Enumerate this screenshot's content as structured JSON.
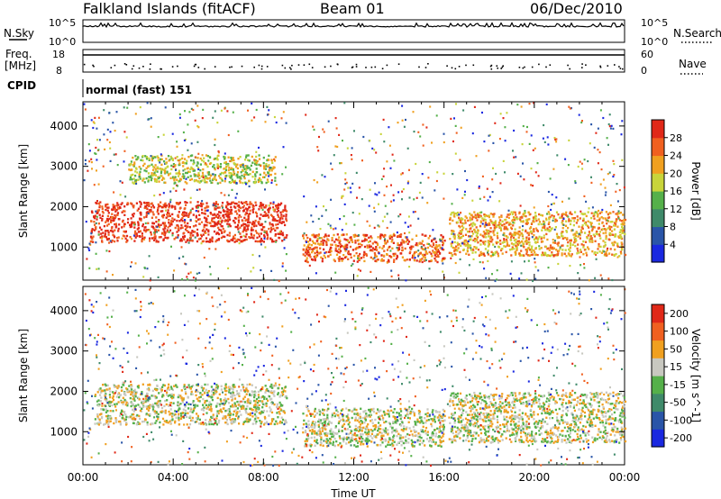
{
  "header": {
    "station": "Falkland Islands (fitACF)",
    "beam": "Beam 01",
    "date": "06/Dec/2010"
  },
  "noise_panel": {
    "left_label": "N.Sky",
    "right_label": "N.Search",
    "ticks_left": [
      "10^5",
      "10^0"
    ],
    "ticks_right": [
      "10^5",
      "10^0"
    ]
  },
  "freq_panel": {
    "left_label_line1": "Freq.",
    "left_label_line2": "[MHz]",
    "right_label": "Nave",
    "ticks_left": [
      "18",
      "8"
    ],
    "ticks_right": [
      "60",
      "0"
    ]
  },
  "cpid_panel": {
    "label": "CPID",
    "mode_text": "normal (fast) 151"
  },
  "chart_data": [
    {
      "type": "heatmap",
      "title": "",
      "xlabel": "",
      "ylabel": "Slant Range [km]",
      "ylim": [
        180,
        4600
      ],
      "yticks": [
        1000,
        2000,
        3000,
        4000
      ],
      "xlim_hours": [
        0,
        24
      ],
      "data_gaps_ut": [
        [
          "09:00",
          "09:45"
        ],
        [
          "16:00",
          "16:15"
        ]
      ],
      "colorbar": {
        "label": "Power [dB]",
        "tick_labels": [
          "4",
          "8",
          "12",
          "16",
          "20",
          "24",
          "28"
        ],
        "colors": [
          "#1a28e0",
          "#2a55a8",
          "#3f8a6a",
          "#55b04a",
          "#c8d43a",
          "#f0a020",
          "#f06020",
          "#e02818"
        ]
      },
      "echo_regions": [
        {
          "t0": 0.3,
          "t1": 9.0,
          "r0": 1150,
          "r1": 2150,
          "level": 7
        },
        {
          "t0": 2.0,
          "t1": 8.5,
          "r0": 2600,
          "r1": 3300,
          "level": 4
        },
        {
          "t0": 9.7,
          "t1": 16.0,
          "r0": 650,
          "r1": 1350,
          "level": 6
        },
        {
          "t0": 16.2,
          "t1": 24.0,
          "r0": 800,
          "r1": 1900,
          "level": 5
        }
      ]
    },
    {
      "type": "heatmap",
      "title": "",
      "xlabel": "Time UT",
      "ylabel": "Slant Range [km]",
      "ylim": [
        180,
        4600
      ],
      "yticks": [
        1000,
        2000,
        3000,
        4000
      ],
      "xticks": [
        "00:00",
        "04:00",
        "08:00",
        "12:00",
        "16:00",
        "20:00",
        "00:00"
      ],
      "colorbar": {
        "label": "Velocity [m s^-1]",
        "tick_labels": [
          "200",
          "100",
          "50",
          "15",
          "-15",
          "-50",
          "-100",
          "-200"
        ],
        "colors": [
          "#1a28e0",
          "#2a55a8",
          "#3f8a6a",
          "#55b04a",
          "#c8c8c0",
          "#f0a020",
          "#f06020",
          "#e02818"
        ]
      },
      "echo_regions": [
        {
          "t0": 0.5,
          "t1": 9.0,
          "r0": 1200,
          "r1": 2200,
          "level": 4
        },
        {
          "t0": 9.7,
          "t1": 16.0,
          "r0": 650,
          "r1": 1600,
          "level": 4
        },
        {
          "t0": 16.2,
          "t1": 24.0,
          "r0": 750,
          "r1": 2000,
          "level": 4
        }
      ]
    }
  ]
}
